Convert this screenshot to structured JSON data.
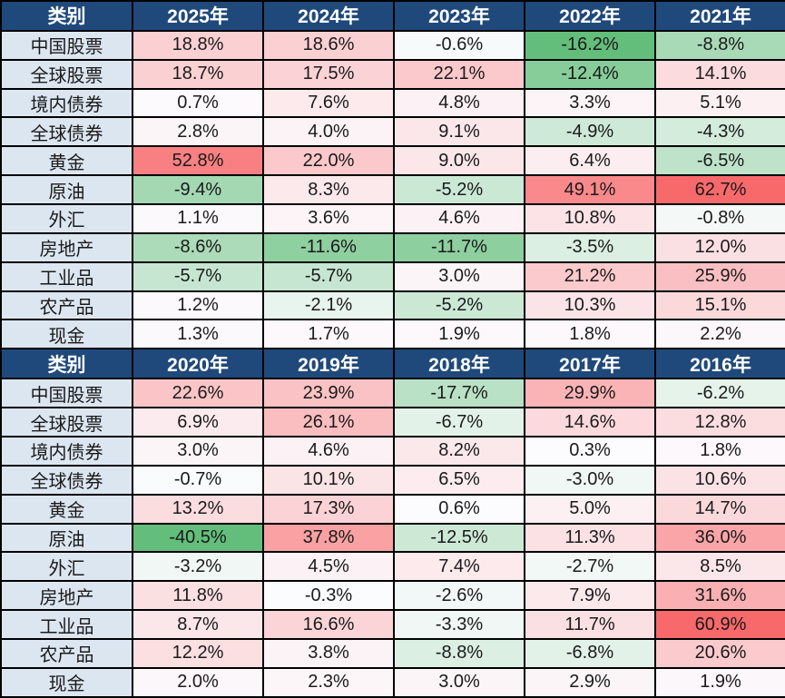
{
  "colors": {
    "header_bg": "#20497B",
    "header_text": "#FFFFFF",
    "category_bg": "#DCE6F1",
    "cell_text": "#1A1A1A",
    "border": "#000000",
    "scale_low_green": "#63BE7B",
    "scale_mid_white": "#FCFCFF",
    "scale_high_red": "#F8696B"
  },
  "chart_data": {
    "type": "heatmap",
    "row_header_label": "类别",
    "value_suffix": "%",
    "value_decimals": 1,
    "legend_position": "none",
    "color_scale": {
      "low_color": "#63BE7B",
      "mid_color": "#FCFCFF",
      "high_color": "#F8696B",
      "midpoint_value": 0,
      "scaled_per_table": true
    },
    "tables": [
      {
        "years": [
          "2025年",
          "2024年",
          "2023年",
          "2022年",
          "2021年"
        ],
        "series": [
          {
            "name": "中国股票",
            "values": [
              18.8,
              18.6,
              -0.6,
              -16.2,
              -8.8
            ]
          },
          {
            "name": "全球股票",
            "values": [
              18.7,
              17.5,
              22.1,
              -12.4,
              14.1
            ]
          },
          {
            "name": "境内债券",
            "values": [
              0.7,
              7.6,
              4.8,
              3.3,
              5.1
            ]
          },
          {
            "name": "全球债券",
            "values": [
              2.8,
              4.0,
              9.1,
              -4.9,
              -4.3
            ]
          },
          {
            "name": "黄金",
            "values": [
              52.8,
              22.0,
              9.0,
              6.4,
              -6.5
            ]
          },
          {
            "name": "原油",
            "values": [
              -9.4,
              8.3,
              -5.2,
              49.1,
              62.7
            ]
          },
          {
            "name": "外汇",
            "values": [
              1.1,
              3.6,
              4.6,
              10.8,
              -0.8
            ]
          },
          {
            "name": "房地产",
            "values": [
              -8.6,
              -11.6,
              -11.7,
              -3.5,
              12.0
            ]
          },
          {
            "name": "工业品",
            "values": [
              -5.7,
              -5.7,
              3.0,
              21.2,
              25.9
            ]
          },
          {
            "name": "农产品",
            "values": [
              1.2,
              -2.1,
              -5.2,
              10.3,
              15.1
            ]
          },
          {
            "name": "现金",
            "values": [
              1.3,
              1.7,
              1.9,
              1.8,
              2.2
            ]
          }
        ]
      },
      {
        "years": [
          "2020年",
          "2019年",
          "2018年",
          "2017年",
          "2016年"
        ],
        "series": [
          {
            "name": "中国股票",
            "values": [
              22.6,
              23.9,
              -17.7,
              29.9,
              -6.2
            ]
          },
          {
            "name": "全球股票",
            "values": [
              6.9,
              26.1,
              -6.7,
              14.6,
              12.8
            ]
          },
          {
            "name": "境内债券",
            "values": [
              3.0,
              4.6,
              8.2,
              0.3,
              1.8
            ]
          },
          {
            "name": "全球债券",
            "values": [
              -0.7,
              10.1,
              6.5,
              -3.0,
              10.6
            ]
          },
          {
            "name": "黄金",
            "values": [
              13.2,
              17.3,
              0.6,
              5.0,
              14.7
            ]
          },
          {
            "name": "原油",
            "values": [
              -40.5,
              37.8,
              -12.5,
              11.3,
              36.0
            ]
          },
          {
            "name": "外汇",
            "values": [
              -3.2,
              4.5,
              7.4,
              -2.7,
              8.5
            ]
          },
          {
            "name": "房地产",
            "values": [
              11.8,
              -0.3,
              -2.6,
              7.9,
              31.6
            ]
          },
          {
            "name": "工业品",
            "values": [
              8.7,
              16.6,
              -3.3,
              11.7,
              60.9
            ]
          },
          {
            "name": "农产品",
            "values": [
              12.2,
              3.8,
              -8.8,
              -6.8,
              20.6
            ]
          },
          {
            "name": "现金",
            "values": [
              2.0,
              2.3,
              3.0,
              2.9,
              1.9
            ]
          }
        ]
      }
    ]
  },
  "layout": {
    "first_col_width": 145,
    "year_col_width": 144
  }
}
